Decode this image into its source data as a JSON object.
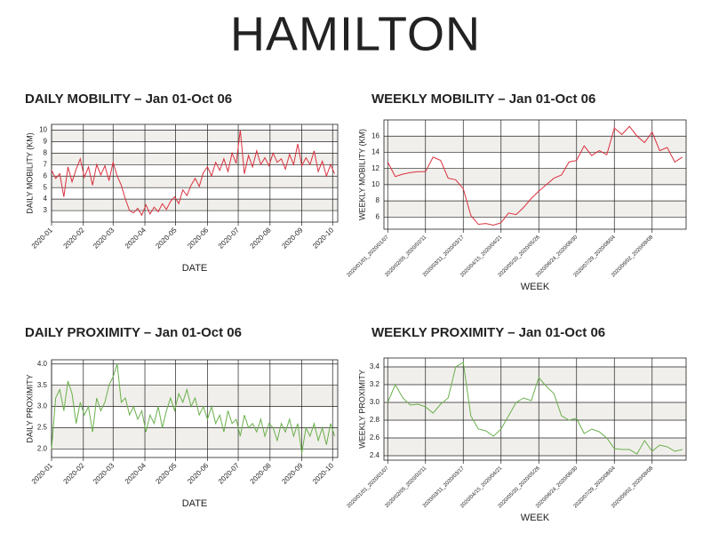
{
  "title": "HAMILTON",
  "chart_data": [
    {
      "type": "line",
      "title": "DAILY MOBILITY – Jan 01-Oct 06",
      "xlabel": "DATE",
      "ylabel": "DAILY MOBILITY (KM)",
      "color": "#d9313e",
      "grid": true,
      "x": [
        1,
        5,
        9,
        13,
        17,
        21,
        25,
        29,
        33,
        37,
        41,
        45,
        49,
        53,
        57,
        61,
        65,
        69,
        73,
        77,
        81,
        85,
        89,
        93,
        97,
        101,
        105,
        109,
        113,
        117,
        121,
        125,
        129,
        133,
        137,
        141,
        145,
        149,
        153,
        157,
        161,
        165,
        169,
        173,
        177,
        181,
        185,
        189,
        193,
        197,
        201,
        205,
        209,
        213,
        217,
        221,
        225,
        229,
        233,
        237,
        241,
        245,
        249,
        253,
        257,
        261,
        265,
        269,
        273,
        277
      ],
      "values": [
        6.5,
        5.8,
        6.2,
        4.2,
        6.8,
        5.5,
        6.6,
        7.5,
        5.9,
        6.8,
        5.2,
        7.0,
        6.1,
        6.9,
        5.6,
        7.2,
        6.0,
        5.2,
        4.0,
        3.0,
        2.8,
        3.2,
        2.6,
        3.5,
        2.7,
        3.3,
        2.9,
        3.6,
        3.1,
        3.8,
        4.2,
        3.6,
        4.8,
        4.3,
        5.2,
        5.8,
        5.1,
        6.3,
        6.8,
        6.0,
        7.2,
        6.5,
        7.5,
        6.4,
        8.0,
        7.1,
        10.0,
        6.2,
        7.8,
        6.8,
        8.2,
        7.0,
        7.6,
        6.9,
        8.0,
        7.2,
        7.5,
        6.6,
        7.9,
        7.0,
        8.8,
        6.9,
        7.6,
        7.0,
        8.2,
        6.4,
        7.3,
        6.0,
        7.0,
        6.2
      ],
      "xlim": [
        1,
        280
      ],
      "xticks": [
        {
          "value": 1,
          "label": "2020-01"
        },
        {
          "value": 32,
          "label": "2020-02"
        },
        {
          "value": 61,
          "label": "2020-03"
        },
        {
          "value": 92,
          "label": "2020-04"
        },
        {
          "value": 122,
          "label": "2020-05"
        },
        {
          "value": 153,
          "label": "2020-06"
        },
        {
          "value": 183,
          "label": "2020-07"
        },
        {
          "value": 214,
          "label": "2020-08"
        },
        {
          "value": 245,
          "label": "2020-09"
        },
        {
          "value": 275,
          "label": "2020-10"
        }
      ],
      "ylim": [
        2,
        10.5
      ],
      "yticks": [
        3,
        4,
        5,
        6,
        7,
        8,
        9,
        10
      ]
    },
    {
      "type": "line",
      "title": "WEEKLY MOBILITY – Jan 01-Oct 06",
      "xlabel": "WEEK",
      "ylabel": "WEEKLY MOBILITY (KM)",
      "color": "#d9313e",
      "grid": true,
      "categories": [
        "2020/01/01_2020/01/07",
        null,
        null,
        null,
        null,
        "2020/02/05_2020/02/11",
        null,
        null,
        null,
        null,
        "2020/03/11_2020/03/17",
        null,
        null,
        null,
        null,
        "2020/04/15_2020/04/21",
        null,
        null,
        null,
        null,
        "2020/05/20_2020/05/26",
        null,
        null,
        null,
        null,
        "2020/06/24_2020/06/30",
        null,
        null,
        null,
        null,
        "2020/07/29_2020/08/04",
        null,
        null,
        null,
        null,
        "2020/09/02_2020/09/08",
        null,
        null,
        null,
        null
      ],
      "values": [
        12.8,
        11.0,
        11.3,
        11.5,
        11.6,
        11.6,
        13.4,
        13.0,
        10.8,
        10.6,
        9.5,
        6.2,
        5.1,
        5.2,
        5.0,
        5.3,
        6.5,
        6.3,
        7.2,
        8.3,
        9.2,
        10.0,
        10.8,
        11.2,
        12.8,
        13.0,
        14.8,
        13.6,
        14.2,
        13.7,
        17.0,
        16.2,
        17.2,
        16.0,
        15.2,
        16.5,
        14.2,
        14.6,
        12.8,
        13.4
      ],
      "ylim": [
        4.5,
        18
      ],
      "yticks": [
        6,
        8,
        10,
        12,
        14,
        16
      ]
    },
    {
      "type": "line",
      "title": "DAILY PROXIMITY – Jan 01-Oct 06",
      "xlabel": "DATE",
      "ylabel": "DAILY PROXIMITY",
      "color": "#6ab04c",
      "grid": true,
      "x": [
        1,
        5,
        9,
        13,
        17,
        21,
        25,
        29,
        33,
        37,
        41,
        45,
        49,
        53,
        57,
        61,
        65,
        69,
        73,
        77,
        81,
        85,
        89,
        93,
        97,
        101,
        105,
        109,
        113,
        117,
        121,
        125,
        129,
        133,
        137,
        141,
        145,
        149,
        153,
        157,
        161,
        165,
        169,
        173,
        177,
        181,
        185,
        189,
        193,
        197,
        201,
        205,
        209,
        213,
        217,
        221,
        225,
        229,
        233,
        237,
        241,
        245,
        249,
        253,
        257,
        261,
        265,
        269,
        273,
        277
      ],
      "values": [
        2.0,
        3.2,
        3.4,
        2.9,
        3.6,
        3.3,
        2.6,
        3.1,
        2.8,
        3.0,
        2.4,
        3.2,
        2.9,
        3.1,
        3.5,
        3.7,
        4.0,
        3.1,
        3.2,
        2.8,
        3.0,
        2.7,
        2.9,
        2.4,
        2.8,
        2.6,
        3.0,
        2.5,
        2.9,
        3.2,
        2.9,
        3.3,
        3.1,
        3.4,
        3.0,
        3.2,
        2.8,
        3.0,
        2.7,
        3.0,
        2.6,
        2.8,
        2.4,
        2.9,
        2.6,
        2.7,
        2.3,
        2.8,
        2.5,
        2.6,
        2.4,
        2.7,
        2.3,
        2.6,
        2.5,
        2.2,
        2.6,
        2.4,
        2.7,
        2.3,
        2.6,
        1.9,
        2.5,
        2.3,
        2.6,
        2.2,
        2.5,
        2.1,
        2.6,
        2.3
      ],
      "xlim": [
        1,
        280
      ],
      "xticks": [
        {
          "value": 1,
          "label": "2020-01"
        },
        {
          "value": 32,
          "label": "2020-02"
        },
        {
          "value": 61,
          "label": "2020-03"
        },
        {
          "value": 92,
          "label": "2020-04"
        },
        {
          "value": 122,
          "label": "2020-05"
        },
        {
          "value": 153,
          "label": "2020-06"
        },
        {
          "value": 183,
          "label": "2020-07"
        },
        {
          "value": 214,
          "label": "2020-08"
        },
        {
          "value": 245,
          "label": "2020-09"
        },
        {
          "value": 275,
          "label": "2020-10"
        }
      ],
      "ylim": [
        1.8,
        4.1
      ],
      "yticks": [
        {
          "value": 2,
          "label": "2.0"
        },
        2.5,
        {
          "value": 3,
          "label": "3.0"
        },
        3.5,
        {
          "value": 4,
          "label": "4.0"
        }
      ]
    },
    {
      "type": "line",
      "title": "WEEKLY PROXIMITY – Jan 01-Oct 06",
      "xlabel": "WEEK",
      "ylabel": "WEEKLY PROXIMITY",
      "color": "#6ab04c",
      "grid": true,
      "categories": [
        "2020/01/01_2020/01/07",
        null,
        null,
        null,
        null,
        "2020/02/05_2020/02/11",
        null,
        null,
        null,
        null,
        "2020/03/11_2020/03/17",
        null,
        null,
        null,
        null,
        "2020/04/15_2020/04/21",
        null,
        null,
        null,
        null,
        "2020/05/20_2020/05/26",
        null,
        null,
        null,
        null,
        "2020/06/24_2020/06/30",
        null,
        null,
        null,
        null,
        "2020/07/29_2020/08/04",
        null,
        null,
        null,
        null,
        "2020/09/02_2020/09/08",
        null,
        null,
        null,
        null
      ],
      "values": [
        3.0,
        3.2,
        3.05,
        2.97,
        2.98,
        2.95,
        2.88,
        2.98,
        3.05,
        3.4,
        3.45,
        2.85,
        2.7,
        2.68,
        2.62,
        2.7,
        2.85,
        3.0,
        3.05,
        3.02,
        3.28,
        3.18,
        3.1,
        2.85,
        2.8,
        2.82,
        2.65,
        2.7,
        2.67,
        2.6,
        2.48,
        2.47,
        2.47,
        2.42,
        2.57,
        2.45,
        2.52,
        2.5,
        2.45,
        2.47
      ],
      "ylim": [
        2.35,
        3.5
      ],
      "yticks": [
        2.4,
        2.6,
        2.8,
        {
          "value": 3,
          "label": "3.0"
        },
        3.2,
        3.4
      ]
    }
  ]
}
